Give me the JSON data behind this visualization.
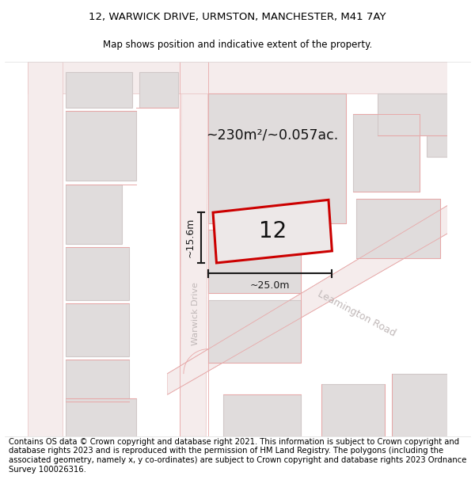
{
  "title_line1": "12, WARWICK DRIVE, URMSTON, MANCHESTER, M41 7AY",
  "title_line2": "Map shows position and indicative extent of the property.",
  "footer_text": "Contains OS data © Crown copyright and database right 2021. This information is subject to Crown copyright and database rights 2023 and is reproduced with the permission of HM Land Registry. The polygons (including the associated geometry, namely x, y co-ordinates) are subject to Crown copyright and database rights 2023 Ordnance Survey 100026316.",
  "area_label": "~230m²/~0.057ac.",
  "property_number": "12",
  "width_label": "~25.0m",
  "height_label": "~15.6m",
  "road_label1": "Warwick Drive",
  "road_label2": "Leamington Road",
  "map_bg": "#f7f5f5",
  "road_fill": "#f5ecec",
  "road_edge": "#e8c0c0",
  "building_fill": "#e0dcdc",
  "building_edge": "#d0c8c8",
  "property_outline": "#cc0000",
  "property_fill": "#ede8e8",
  "dim_color": "#1a1a1a",
  "road_label_color": "#c0b8b8",
  "title_fontsize": 9.5,
  "subtitle_fontsize": 8.5,
  "footer_fontsize": 7.2,
  "number_fontsize": 20
}
